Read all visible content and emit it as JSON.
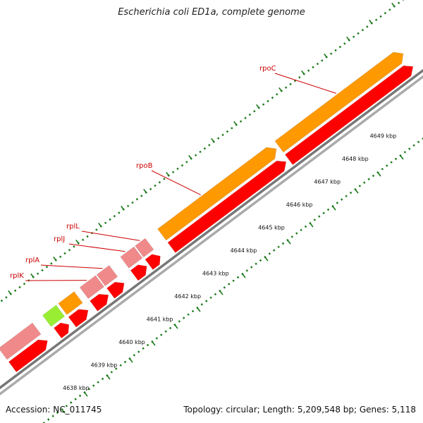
{
  "title": "Escherichia coli ED1a, complete genome",
  "footer": {
    "accession": "Accession: NC_011745",
    "summary": "Topology: circular; Length: 5,209,548 bp; Genes: 5,118"
  },
  "colors": {
    "orange": "#ff9900",
    "red": "#ff0000",
    "pink": "#f08a8a",
    "green": "#99ee33",
    "blue": "#0000ff",
    "label": "#cc0000",
    "backbone": "#888888",
    "tick": "#1a7a1a"
  },
  "kbp_labels": [
    "4638 kbp",
    "4639 kbp",
    "4640 kbp",
    "4641 kbp",
    "4642 kbp",
    "4643 kbp",
    "4644 kbp",
    "4645 kbp",
    "4646 kbp",
    "4647 kbp",
    "4648 kbp",
    "4649 kbp"
  ],
  "gene_labels": [
    "rplK",
    "rplA",
    "rplJ",
    "rplL",
    "rpoB",
    "rpoC"
  ]
}
